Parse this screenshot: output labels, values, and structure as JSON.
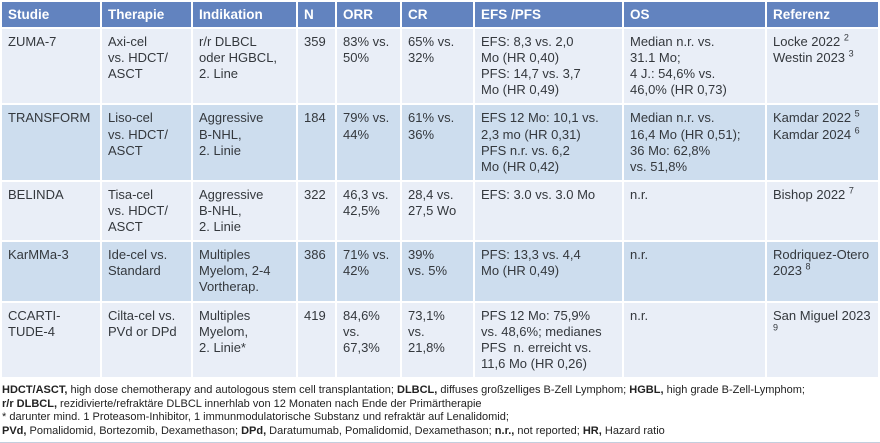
{
  "colors": {
    "header_bg": "#6283bf",
    "row_light": "#e9eef7",
    "row_dark": "#cdddee",
    "cell_text": "#34383d",
    "footnote_text": "#222222",
    "bottom_rule": "#c3cedd"
  },
  "table": {
    "columns": [
      {
        "key": "studie",
        "label": "Studie"
      },
      {
        "key": "therapie",
        "label": "Therapie"
      },
      {
        "key": "indikation",
        "label": "Indikation"
      },
      {
        "key": "n",
        "label": "N"
      },
      {
        "key": "orr",
        "label": "ORR"
      },
      {
        "key": "cr",
        "label": "CR"
      },
      {
        "key": "efs_pfs",
        "label": "EFS /PFS"
      },
      {
        "key": "os",
        "label": "OS"
      },
      {
        "key": "referenz",
        "label": "Referenz"
      }
    ],
    "rows": [
      {
        "studie": "ZUMA-7",
        "therapie": "Axi-cel\nvs. HDCT/\nASCT",
        "indikation": "r/r DLBCL\noder HGBCL,\n2. Line",
        "n": "359",
        "orr": "83% vs.\n50%",
        "cr": "65% vs.\n32%",
        "efs_pfs": "EFS: 8,3 vs. 2,0\nMo (HR 0,40)\nPFS: 14,7 vs. 3,7\nMo (HR 0,49)",
        "os": "Median n.r. vs.\n31.1 Mo;\n4 J.: 54,6% vs.\n46,0% (HR 0,73)",
        "referenz": [
          {
            "text": "Locke 2022",
            "sup": "2"
          },
          {
            "text": "Westin 2023",
            "sup": "3"
          }
        ]
      },
      {
        "studie": "TRANSFORM",
        "therapie": "Liso-cel\nvs. HDCT/\nASCT",
        "indikation": "Aggressive\nB-NHL,\n2. Linie",
        "n": "184",
        "orr": "79% vs.\n44%",
        "cr": "61% vs.\n36%",
        "efs_pfs": "EFS 12 Mo: 10,1 vs.\n2,3 mo (HR 0,31)\nPFS n.r. vs. 6,2\nMo (HR 0,42)",
        "os": "Median n.r. vs.\n16,4 Mo (HR 0,51);\n36 Mo: 62,8%\nvs. 51,8%",
        "referenz": [
          {
            "text": "Kamdar 2022",
            "sup": "5"
          },
          {
            "text": "Kamdar 2024",
            "sup": "6"
          }
        ]
      },
      {
        "studie": "BELINDA",
        "therapie": "Tisa-cel\nvs. HDCT/\nASCT",
        "indikation": "Aggressive\nB-NHL,\n2. Linie",
        "n": "322",
        "orr": "46,3 vs.\n42,5%",
        "cr": "28,4 vs.\n27,5 Wo",
        "efs_pfs": "EFS: 3.0 vs. 3.0 Mo",
        "os": "n.r.",
        "referenz": [
          {
            "text": "Bishop 2022",
            "sup": "7"
          }
        ]
      },
      {
        "studie": "KarMMa-3",
        "therapie": "Ide-cel vs.\nStandard",
        "indikation": "Multiples\nMyelom, 2-4\nVortherap.",
        "n": "386",
        "orr": "71% vs.\n42%",
        "cr": "39%\nvs. 5%",
        "efs_pfs": "PFS: 13,3 vs. 4,4\nMo (HR 0,49)",
        "os": "n.r.",
        "referenz": [
          {
            "text": "Rodriquez-Otero 2023",
            "sup": "8"
          }
        ]
      },
      {
        "studie": "CCARTI-\nTUDE-4",
        "therapie": "Cilta-cel vs.\nPVd or DPd",
        "indikation": "Multiples\nMyelom,\n2. Linie*",
        "n": "419",
        "orr": "84,6%\nvs.\n67,3%",
        "cr": "73,1%\nvs.\n21,8%",
        "efs_pfs": "PFS 12 Mo: 75,9%\nvs. 48,6%; medianes\nPFS  n. erreicht vs.\n11,6 Mo (HR 0,26)",
        "os": "n.r.",
        "referenz": [
          {
            "text": "San Miguel 2023",
            "sup": "9"
          }
        ]
      }
    ]
  },
  "footnotes": [
    [
      {
        "text": "HDCT/ASCT,",
        "bold": true
      },
      {
        "text": " high dose chemotherapy and autologous stem cell transplantation; ",
        "bold": false
      },
      {
        "text": "DLBCL,",
        "bold": true
      },
      {
        "text": " diffuses großzelliges B-Zell Lymphom; ",
        "bold": false
      },
      {
        "text": "HGBL,",
        "bold": true
      },
      {
        "text": " high grade B-Zell-Lymphom;",
        "bold": false
      }
    ],
    [
      {
        "text": "r/r DLBCL,",
        "bold": true
      },
      {
        "text": " rezidivierte/refraktäre DLBCL innerhlab von 12 Monaten nach Ende der Primärtherapie",
        "bold": false
      }
    ],
    [
      {
        "text": "*  darunter mind. 1 Proteasom-Inhibitor, 1 immunmodulatorische Substanz und refraktär auf Lenalidomid;",
        "bold": false
      }
    ],
    [
      {
        "text": "PVd,",
        "bold": true
      },
      {
        "text": " Pomalidomid, Bortezomib, Dexamethason; ",
        "bold": false
      },
      {
        "text": "DPd,",
        "bold": true
      },
      {
        "text": " Daratumumab, Pomalidomid, Dexamethason; ",
        "bold": false
      },
      {
        "text": "n.r.,",
        "bold": true
      },
      {
        "text": " not reported; ",
        "bold": false
      },
      {
        "text": "HR,",
        "bold": true
      },
      {
        "text": " Hazard ratio",
        "bold": false
      }
    ]
  ]
}
